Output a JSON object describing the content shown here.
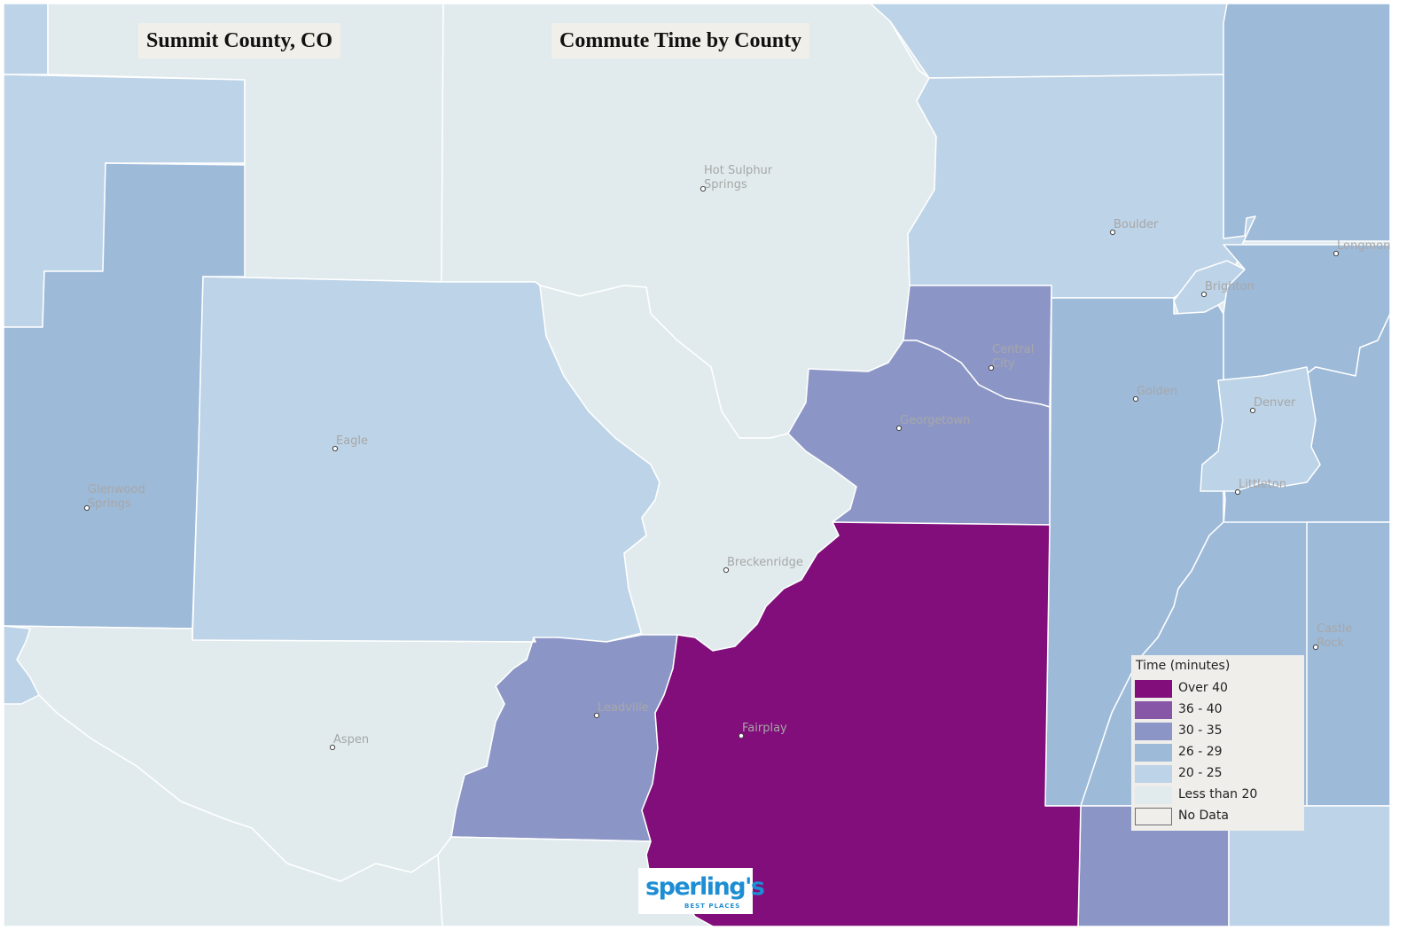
{
  "map": {
    "title": "Summit County, CO",
    "subtitle": "Commute Time by County"
  },
  "colors": {
    "background": "#e1ebee",
    "over_40": "#810e7a",
    "36_40": "#8856a7",
    "30_35": "#8c96c6",
    "26_29": "#9dbad9",
    "20_25": "#bdd3e7",
    "less_than_20": "#e1ebee",
    "no_data": "#efeeea"
  },
  "legend": {
    "title": "Time  (minutes)",
    "items": [
      {
        "label": "Over 40",
        "color": "#810e7a"
      },
      {
        "label": "36 - 40",
        "color": "#8856a7"
      },
      {
        "label": "30 - 35",
        "color": "#8c96c6"
      },
      {
        "label": "26 - 29",
        "color": "#9dbad9"
      },
      {
        "label": "20 - 25",
        "color": "#bdd3e7"
      },
      {
        "label": "Less than 20",
        "color": "#e1ebee"
      },
      {
        "label": "No Data",
        "color": "#efeeea"
      }
    ]
  },
  "cities": [
    {
      "line1": "Hot Sulphur",
      "line2": "Springs"
    },
    {
      "line1": "Boulder",
      "line2": ""
    },
    {
      "line1": "Longmont",
      "line2": ""
    },
    {
      "line1": "Brighton",
      "line2": ""
    },
    {
      "line1": "Central",
      "line2": "City"
    },
    {
      "line1": "Golden",
      "line2": ""
    },
    {
      "line1": "Denver",
      "line2": ""
    },
    {
      "line1": "Littleton",
      "line2": ""
    },
    {
      "line1": "Georgetown",
      "line2": ""
    },
    {
      "line1": "Eagle",
      "line2": ""
    },
    {
      "line1": "Glenwood",
      "line2": "Springs"
    },
    {
      "line1": "Breckenridge",
      "line2": ""
    },
    {
      "line1": "Castle",
      "line2": "Rock"
    },
    {
      "line1": "Leadville",
      "line2": ""
    },
    {
      "line1": "Fairplay",
      "line2": ""
    },
    {
      "line1": "Aspen",
      "line2": ""
    }
  ],
  "logo": {
    "word": "sperling's",
    "sub": "BEST PLACES"
  }
}
